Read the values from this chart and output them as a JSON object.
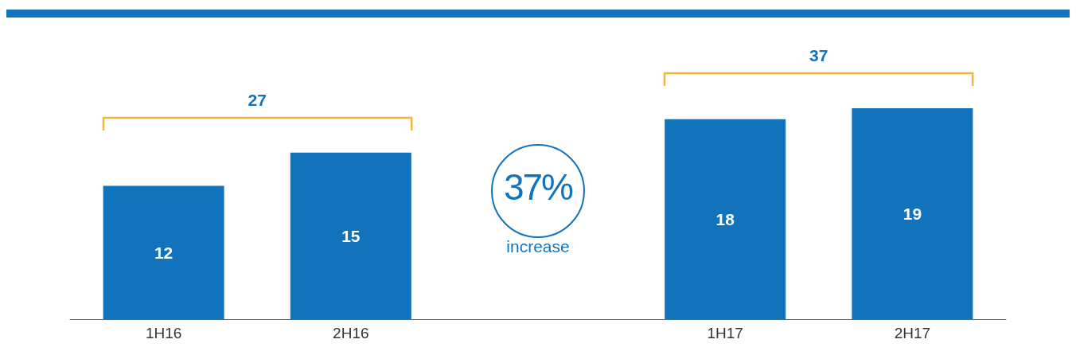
{
  "chart_data": {
    "type": "bar",
    "categories": [
      "1H16",
      "2H16",
      null,
      "1H17",
      "2H17"
    ],
    "values": [
      12,
      15,
      null,
      18,
      19
    ],
    "color": "#1273bd",
    "data_labels": true,
    "tick_labels": "x",
    "annotations": [
      "27",
      "37",
      "37%",
      "increase"
    ]
  }
}
